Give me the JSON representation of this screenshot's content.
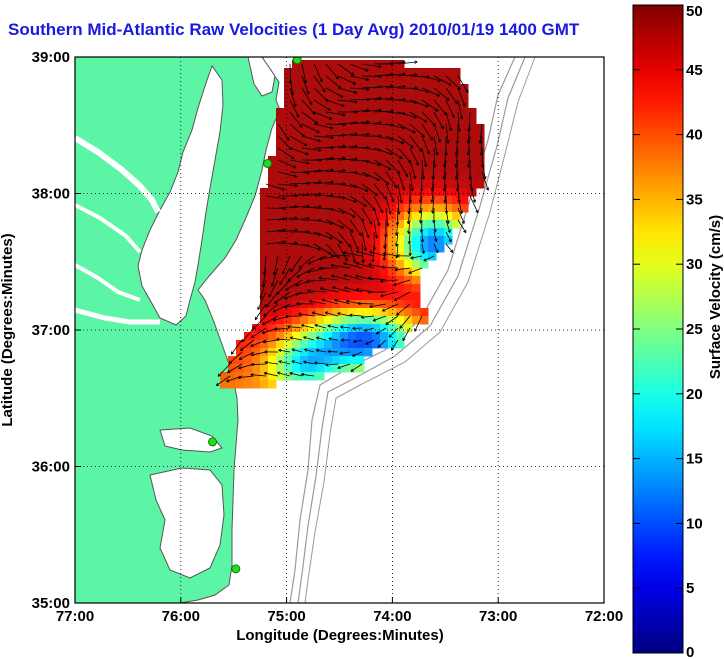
{
  "title": "Southern Mid-Atlantic Raw Velocities (1 Day Avg) 2010/01/19 1400 GMT",
  "colors": {
    "land": "#5cf5a6",
    "coast": "#555555",
    "isobath": "#9a9a9a",
    "grid": "#000000",
    "title": "#1a1adf",
    "station": "#22dd22"
  },
  "map": {
    "xlabel": "Longitude (Degrees:Minutes)",
    "ylabel": "Latitude (Degrees:Minutes)",
    "lon_range": [
      -77,
      -72
    ],
    "lat_range": [
      35,
      39
    ],
    "x_ticks": [
      {
        "value": -77,
        "label": "77:00"
      },
      {
        "value": -76,
        "label": "76:00"
      },
      {
        "value": -75,
        "label": "75:00"
      },
      {
        "value": -74,
        "label": "74:00"
      },
      {
        "value": -73,
        "label": "73:00"
      },
      {
        "value": -72,
        "label": "72:00"
      }
    ],
    "y_ticks": [
      {
        "value": 35,
        "label": "35:00"
      },
      {
        "value": 36,
        "label": "36:00"
      },
      {
        "value": 37,
        "label": "37:00"
      },
      {
        "value": 38,
        "label": "38:00"
      },
      {
        "value": 39,
        "label": "39:00"
      }
    ],
    "grid_style": "dotted",
    "stations": [
      {
        "lon": -74.9,
        "lat": 38.98
      },
      {
        "lon": -75.18,
        "lat": 38.22
      },
      {
        "lon": -75.7,
        "lat": 36.18
      },
      {
        "lon": -75.48,
        "lat": 35.25
      }
    ]
  },
  "colorbar": {
    "label": "Surface Velocity (cm/s)",
    "min": 0,
    "max": 50,
    "ticks": [
      {
        "value": 0,
        "label": "0"
      },
      {
        "value": 5,
        "label": "5"
      },
      {
        "value": 10,
        "label": "10"
      },
      {
        "value": 15,
        "label": "15"
      },
      {
        "value": 20,
        "label": "20"
      },
      {
        "value": 25,
        "label": "25"
      },
      {
        "value": 30,
        "label": "30"
      },
      {
        "value": 35,
        "label": "35"
      },
      {
        "value": 40,
        "label": "40"
      },
      {
        "value": 45,
        "label": "45"
      },
      {
        "value": 50,
        "label": "50"
      }
    ],
    "colormap": "jet"
  }
}
